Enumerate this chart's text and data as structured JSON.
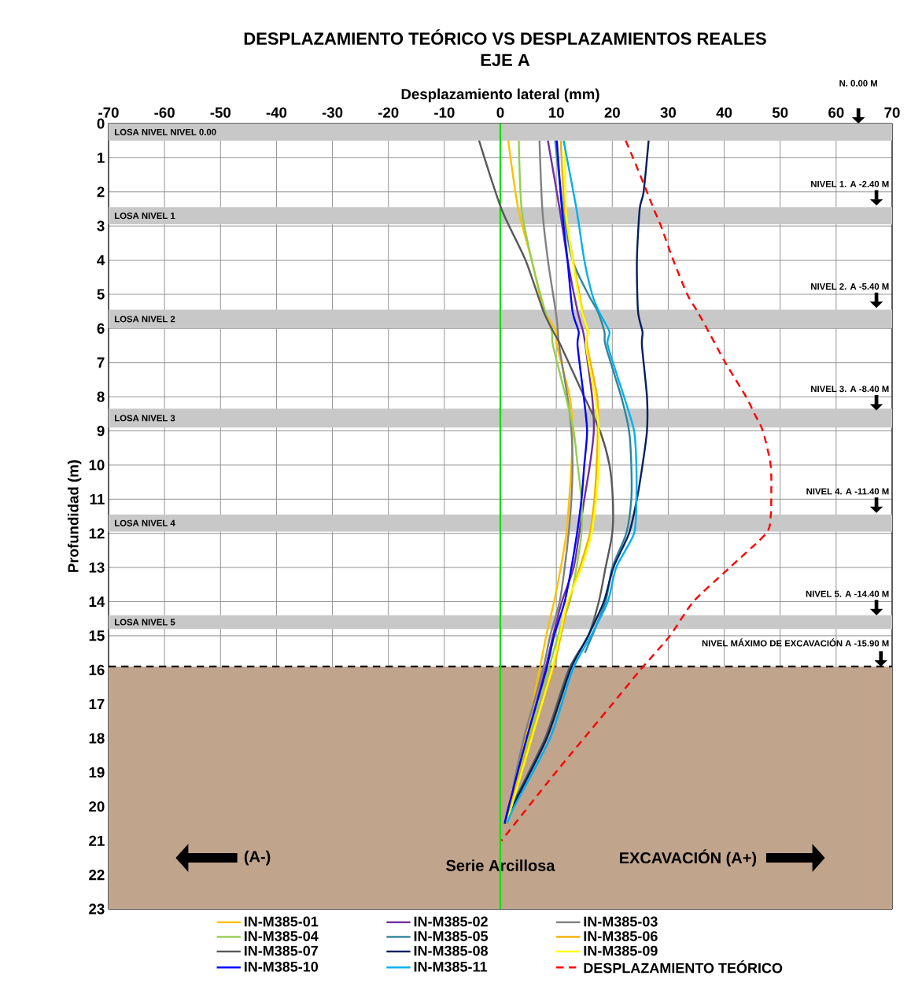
{
  "chart_data": {
    "type": "line",
    "title": "DESPLAZAMIENTO TEÓRICO  VS DESPLAZAMIENTOS REALES",
    "subtitle": "EJE A",
    "xlabel": "Desplazamiento lateral (mm)",
    "ylabel": "Profundidad (m)",
    "xlim": [
      -70,
      70
    ],
    "ylim": [
      23,
      0
    ],
    "xticks": [
      -70,
      -60,
      -50,
      -40,
      -30,
      -20,
      -10,
      0,
      10,
      20,
      30,
      40,
      50,
      60,
      70
    ],
    "yticks": [
      0,
      1,
      2,
      3,
      4,
      5,
      6,
      7,
      8,
      9,
      10,
      11,
      12,
      13,
      14,
      15,
      16,
      17,
      18,
      19,
      20,
      21,
      22,
      23
    ],
    "grid": true,
    "legend": "bottom",
    "series": [
      {
        "name": "IN-M385-01",
        "color": "#ffc000",
        "x": [
          1.4,
          3.2,
          5.6,
          7.0,
          7.9,
          10,
          10.1,
          12.4,
          12.9,
          12.7,
          12.3,
          11.8,
          10.8,
          9.6,
          8.2,
          7.0,
          4.5,
          1.5,
          0.8
        ],
        "values": [
          0.5,
          2.5,
          4,
          5,
          5.5,
          6.1,
          6.5,
          8,
          9,
          10,
          11,
          12,
          13,
          14,
          15,
          16,
          18,
          20,
          20.5
        ]
      },
      {
        "name": "IN-M385-02",
        "color": "#7030a0",
        "x": [
          8.5,
          10.6,
          12,
          13.8,
          14.8,
          15.2,
          16.4,
          16.7,
          16,
          15,
          14.1,
          13.1,
          11,
          9.4,
          8,
          4.8,
          1.5,
          0.8
        ],
        "values": [
          0.5,
          2.5,
          4,
          5.5,
          6.1,
          6.5,
          8,
          9,
          10,
          11,
          12,
          13,
          14,
          15,
          16,
          18,
          20,
          20.5
        ]
      },
      {
        "name": "IN-M385-03",
        "color": "#808080",
        "x": [
          7.0,
          7.5,
          8.5,
          9.9,
          10.3,
          10.5,
          12,
          12.7,
          12.9,
          12.7,
          12.2,
          11.5,
          10.6,
          8.9,
          7.6,
          4.2,
          2.2
        ],
        "values": [
          0.5,
          2.5,
          4,
          5.5,
          6.1,
          6.5,
          8,
          9,
          10,
          11,
          12,
          13,
          14,
          15,
          16,
          18,
          19.5
        ]
      },
      {
        "name": "IN-M385-04",
        "color": "#92d050",
        "x": [
          3.3,
          3.8,
          5.6,
          8.0,
          9.2,
          9.4,
          11.7,
          13.1,
          13.8,
          14.5,
          14.5,
          13.6,
          12.4,
          10.3,
          8.6,
          5.0,
          2.5
        ],
        "values": [
          0.5,
          2.5,
          4,
          5.5,
          6.1,
          6.5,
          8,
          9,
          10,
          11,
          12,
          13,
          14,
          15,
          16,
          18,
          19.5
        ]
      },
      {
        "name": "IN-M385-05",
        "color": "#31849b",
        "x": [
          9.8,
          11.2,
          12.9,
          15.7,
          17.4,
          18.6,
          18.8,
          21.6,
          23,
          23.4,
          23.4,
          22.5,
          20,
          18.8,
          16.4,
          15.1
        ],
        "values": [
          0.5,
          2.5,
          4,
          5,
          5.5,
          6.1,
          6.5,
          8,
          9,
          10,
          11,
          12,
          13,
          14,
          15,
          15.5
        ]
      },
      {
        "name": "IN-M385-06",
        "color": "#f5b000",
        "x": [
          10.8,
          11.5,
          13,
          14.7,
          15.6,
          15.5,
          17.3,
          17.4,
          17.2,
          16.8,
          16,
          14.2,
          12.2,
          10.8,
          9.4,
          5.4,
          1.8,
          0.9
        ],
        "values": [
          0.5,
          2.5,
          4,
          5.5,
          6.1,
          6.5,
          8,
          9,
          10,
          11,
          12,
          13,
          14,
          15,
          16,
          18,
          20,
          20.5
        ]
      },
      {
        "name": "IN-M385-07",
        "color": "#595959",
        "x": [
          -3.8,
          0.2,
          4.5,
          7.7,
          9.5,
          10.8,
          15.0,
          17.8,
          19.5,
          20.1,
          20,
          18.8,
          17.6,
          15.7,
          12.2,
          8,
          2,
          0.8
        ],
        "values": [
          0.5,
          2.5,
          4,
          5.5,
          6.1,
          6.5,
          8,
          9,
          10,
          11,
          12,
          13,
          14,
          15,
          16,
          18,
          20,
          20.5
        ]
      },
      {
        "name": "IN-M385-08",
        "color": "#002060",
        "x": [
          26.5,
          25.6,
          24.9,
          24.4,
          24.6,
          25.4,
          25.3,
          26.2,
          26.2,
          25.4,
          24.4,
          23,
          20.2,
          18.5,
          15.7,
          12.5,
          8.3,
          2.2,
          1
        ],
        "values": [
          0.5,
          2,
          2.5,
          4,
          5.5,
          6.1,
          6.5,
          8,
          9,
          10,
          11,
          12,
          13,
          14,
          15,
          16,
          18,
          20,
          20.5
        ]
      },
      {
        "name": "IN-M385-09",
        "color": "#ffff00",
        "x": [
          11.6,
          11.7,
          12.9,
          14.6,
          15.7,
          15.3,
          16.9,
          17.6,
          17.6,
          17.1,
          16.3,
          14.5,
          12,
          10.6,
          9.2,
          5.6,
          2,
          1
        ],
        "values": [
          0.5,
          2.5,
          4,
          5.5,
          6.1,
          6.5,
          8,
          9,
          10,
          11,
          12,
          13,
          14,
          15,
          16,
          18,
          20,
          20.5
        ]
      },
      {
        "name": "IN-M385-10",
        "color": "#0000ff",
        "x": [
          10.1,
          11,
          12,
          12.9,
          14,
          13.8,
          14.9,
          15.5,
          15,
          14.5,
          13.7,
          12.7,
          11.5,
          9.6,
          8.2,
          4.7,
          1.5,
          0.8
        ],
        "values": [
          0.5,
          2.5,
          4,
          5.5,
          6.1,
          6.5,
          8,
          9,
          10,
          11,
          12,
          13,
          14,
          15,
          16,
          18,
          20,
          20.5
        ]
      },
      {
        "name": "IN-M385-11",
        "color": "#00b0f0",
        "x": [
          11.3,
          13.6,
          15,
          16.4,
          17.6,
          19.5,
          19.2,
          22.1,
          23.9,
          24.3,
          24.3,
          23.9,
          20.7,
          19.2,
          16.2,
          12.9,
          8.9,
          2.5,
          1.2
        ],
        "values": [
          0.5,
          2.5,
          4,
          5,
          5.5,
          6.1,
          6.5,
          8,
          9,
          10,
          11,
          12,
          13,
          14,
          15,
          16,
          18,
          20,
          20.5
        ]
      },
      {
        "name": "DESPLAZAMIENTO TEÓRICO",
        "color": "#ff0000",
        "line_style": "dashed",
        "x": [
          22.4,
          23.7,
          26.2,
          27.4,
          28.7,
          30.9,
          33.4,
          35.2,
          36.9,
          40.2,
          43.9,
          45.4,
          46.9,
          48.3,
          48.4,
          48.3,
          47.5,
          41,
          34.5,
          30.3,
          25,
          20,
          9.9,
          0.2
        ],
        "values": [
          0.5,
          1,
          2,
          2.5,
          3,
          4,
          5,
          5.5,
          6,
          7,
          8,
          8.5,
          9,
          10,
          11,
          11.5,
          12,
          13,
          14,
          15,
          16,
          17,
          19,
          21
        ]
      }
    ],
    "bands": [
      {
        "axis": "y",
        "from": 0,
        "to": 0.5,
        "label": "LOSA NIVEL NIVEL 0.00",
        "color": "#c8c8c8"
      },
      {
        "axis": "y",
        "from": 2.45,
        "to": 2.95,
        "label": "LOSA NIVEL 1",
        "color": "#c8c8c8"
      },
      {
        "axis": "y",
        "from": 5.45,
        "to": 6.0,
        "label": "LOSA NIVEL 2",
        "color": "#c8c8c8"
      },
      {
        "axis": "y",
        "from": 8.35,
        "to": 8.9,
        "label": "LOSA NIVEL 3",
        "color": "#c8c8c8"
      },
      {
        "axis": "y",
        "from": 11.45,
        "to": 11.95,
        "label": "LOSA NIVEL 4",
        "color": "#c8c8c8"
      },
      {
        "axis": "y",
        "from": 14.4,
        "to": 14.8,
        "label": "LOSA NIVEL 5",
        "color": "#c8c8c8"
      },
      {
        "axis": "y",
        "from": 15.9,
        "to": 23,
        "label": "Serie Arcillosa",
        "color": "#c0a48c"
      }
    ],
    "ref_lines": [
      {
        "axis": "y",
        "value": 15.9,
        "label": "NIVEL MÁXIMO DE EXCAVACIÓN A -15.90 M",
        "color": "#000000",
        "line_style": "dashed"
      },
      {
        "axis": "x",
        "value": 0,
        "color": "#00dd00"
      }
    ],
    "annotations": [
      "N. 0.00 M",
      {
        "text": "NIVEL 1. A -2.40 M",
        "y": 2.4
      },
      {
        "text": "NIVEL 2. A -5.40 M",
        "y": 5.4
      },
      {
        "text": "NIVEL 3. A -8.40 M",
        "y": 8.4
      },
      {
        "text": "NIVEL 4. A -11.40 M",
        "y": 11.4
      },
      {
        "text": "NIVEL 5. A -14.40 M",
        "y": 14.4
      },
      "(A-)",
      "EXCAVACIÓN (A+)"
    ]
  }
}
